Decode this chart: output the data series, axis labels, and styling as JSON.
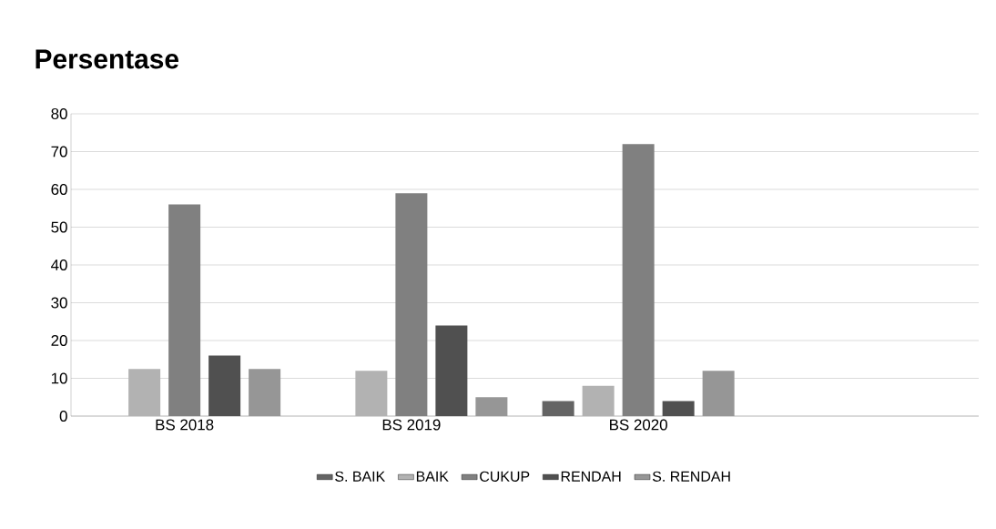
{
  "chart_data": {
    "type": "bar",
    "title": "Persentase",
    "categories": [
      "BS 2018",
      "BS 2019",
      "BS 2020",
      null
    ],
    "series": [
      {
        "name": "S. BAIK",
        "color": "#646464",
        "values": [
          null,
          null,
          4,
          null
        ]
      },
      {
        "name": "BAIK",
        "color": "#b2b2b2",
        "values": [
          12.5,
          12,
          8,
          null
        ]
      },
      {
        "name": "CUKUP",
        "color": "#808080",
        "values": [
          56,
          59,
          72,
          null
        ]
      },
      {
        "name": "RENDAH",
        "color": "#505050",
        "values": [
          16,
          24,
          4,
          null
        ]
      },
      {
        "name": "S. RENDAH",
        "color": "#969696",
        "values": [
          12.5,
          5,
          12,
          null
        ]
      }
    ],
    "ylim": [
      0,
      80
    ],
    "yticks": [
      0,
      10,
      20,
      30,
      40,
      50,
      60,
      70,
      80
    ],
    "grid": "y",
    "legend": "bottom"
  }
}
